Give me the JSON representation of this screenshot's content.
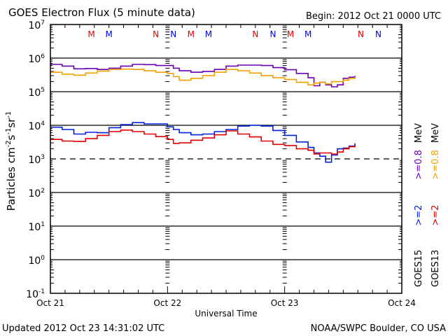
{
  "chart_data": {
    "type": "line",
    "title": "GOES Electron Flux (5 minute data)",
    "begin_label": "Begin: 2012 Oct 21 0000 UTC",
    "xlabel": "Universal Time",
    "ylabel": "Particles cm",
    "ylabel_parts": [
      {
        "text": "Particles cm",
        "sup": false
      },
      {
        "text": "-2",
        "sup": true
      },
      {
        "text": "s",
        "sup": false
      },
      {
        "text": "-1",
        "sup": true
      },
      {
        "text": "sr",
        "sup": false
      },
      {
        "text": "-1",
        "sup": true
      }
    ],
    "x_unit": "days since 2012 Oct 21 00:00 UTC",
    "xlim": [
      0,
      3
    ],
    "x_ticks": [
      {
        "value": 0,
        "label": "Oct 21"
      },
      {
        "value": 1,
        "label": "Oct 22"
      },
      {
        "value": 2,
        "label": "Oct 23"
      },
      {
        "value": 3,
        "label": "Oct 24"
      }
    ],
    "y_scale": "log",
    "ylim_exp": [
      -1,
      7
    ],
    "y_ticks": [
      {
        "exp": 7,
        "base": "10",
        "sup": "7"
      },
      {
        "exp": 6,
        "base": "10",
        "sup": "6"
      },
      {
        "exp": 5,
        "base": "10",
        "sup": "5"
      },
      {
        "exp": 4,
        "base": "10",
        "sup": "4"
      },
      {
        "exp": 3,
        "base": "10",
        "sup": "3"
      },
      {
        "exp": 2,
        "base": "10",
        "sup": "2"
      },
      {
        "exp": 1,
        "base": "10",
        "sup": "1"
      },
      {
        "exp": 0,
        "base": "10",
        "sup": "0"
      },
      {
        "exp": -1,
        "base": "10",
        "sup": "-1"
      }
    ],
    "gridlines_exp": [
      6,
      5,
      4,
      2,
      1,
      0
    ],
    "threshold_exp": 3,
    "markers": [
      {
        "day": 0.35,
        "label": "M",
        "color": "#e00000"
      },
      {
        "day": 0.5,
        "label": "M",
        "color": "#0000e0"
      },
      {
        "day": 0.9,
        "label": "N",
        "color": "#e00000"
      },
      {
        "day": 1.05,
        "label": "N",
        "color": "#0000e0"
      },
      {
        "day": 1.2,
        "label": "M",
        "color": "#e00000"
      },
      {
        "day": 1.35,
        "label": "M",
        "color": "#0000e0"
      },
      {
        "day": 1.75,
        "label": "N",
        "color": "#e00000"
      },
      {
        "day": 1.9,
        "label": "N",
        "color": "#0000e0"
      },
      {
        "day": 2.05,
        "label": "M",
        "color": "#e00000"
      },
      {
        "day": 2.2,
        "label": "M",
        "color": "#0000e0"
      },
      {
        "day": 2.65,
        "label": "N",
        "color": "#e00000"
      },
      {
        "day": 2.8,
        "label": "N",
        "color": "#0000e0"
      }
    ],
    "legend": {
      "placement": "right",
      "columns": [
        {
          "sat": "GOES15",
          "entries": [
            {
              "label": ">=2",
              "color": "#0020e0"
            },
            {
              "label": ">=0.8",
              "color": "#6a00b0"
            }
          ],
          "unit": "MeV"
        },
        {
          "sat": "GOES13",
          "entries": [
            {
              "label": ">=2",
              "color": "#e00000"
            },
            {
              "label": ">=0.8",
              "color": "#f0a000"
            }
          ],
          "unit": "MeV"
        }
      ]
    },
    "series": [
      {
        "name": "GOES15 >=0.8 MeV",
        "color": "#6a00b0",
        "x": [
          0,
          0.1,
          0.2,
          0.3,
          0.4,
          0.5,
          0.6,
          0.7,
          0.8,
          0.9,
          1.0,
          1.05,
          1.1,
          1.2,
          1.3,
          1.4,
          1.5,
          1.6,
          1.7,
          1.8,
          1.9,
          2.0,
          2.1,
          2.2,
          2.25,
          2.3,
          2.35,
          2.4,
          2.45,
          2.5,
          2.55,
          2.6
        ],
        "y": [
          650000.0,
          580000.0,
          480000.0,
          490000.0,
          460000.0,
          500000.0,
          580000.0,
          650000.0,
          640000.0,
          600000.0,
          600000.0,
          500000.0,
          420000.0,
          380000.0,
          400000.0,
          460000.0,
          580000.0,
          620000.0,
          620000.0,
          600000.0,
          520000.0,
          450000.0,
          350000.0,
          260000.0,
          150000.0,
          190000.0,
          160000.0,
          140000.0,
          160000.0,
          250000.0,
          270000.0,
          300000.0
        ]
      },
      {
        "name": "GOES13 >=0.8 MeV",
        "color": "#f0a000",
        "x": [
          0,
          0.1,
          0.2,
          0.3,
          0.4,
          0.5,
          0.6,
          0.7,
          0.8,
          0.9,
          1.0,
          1.05,
          1.1,
          1.2,
          1.3,
          1.4,
          1.5,
          1.6,
          1.7,
          1.8,
          1.9,
          2.0,
          2.1,
          2.2,
          2.25,
          2.3,
          2.35,
          2.4,
          2.45,
          2.5,
          2.55,
          2.6
        ],
        "y": [
          380000.0,
          330000.0,
          310000.0,
          360000.0,
          410000.0,
          460000.0,
          470000.0,
          460000.0,
          420000.0,
          380000.0,
          350000.0,
          280000.0,
          220000.0,
          250000.0,
          300000.0,
          380000.0,
          460000.0,
          420000.0,
          360000.0,
          300000.0,
          260000.0,
          230000.0,
          190000.0,
          160000.0,
          180000.0,
          190000.0,
          170000.0,
          200000.0,
          200000.0,
          220000.0,
          250000.0,
          280000.0
        ]
      },
      {
        "name": "GOES15 >=2 MeV",
        "color": "#0020e0",
        "x": [
          0,
          0.1,
          0.2,
          0.3,
          0.4,
          0.5,
          0.6,
          0.7,
          0.8,
          0.9,
          1.0,
          1.05,
          1.1,
          1.2,
          1.3,
          1.4,
          1.5,
          1.6,
          1.7,
          1.8,
          1.9,
          2.0,
          2.1,
          2.2,
          2.25,
          2.3,
          2.35,
          2.4,
          2.45,
          2.5,
          2.55,
          2.6
        ],
        "y": [
          8800.0,
          7500.0,
          5500.0,
          6200.0,
          6000.0,
          8500.0,
          10500.0,
          12000.0,
          11000.0,
          11000.0,
          9000.0,
          7500.0,
          6000.0,
          5200.0,
          5500.0,
          6500.0,
          7500.0,
          9500.0,
          10000.0,
          9500.0,
          7000.0,
          5000.0,
          3200.0,
          2200.0,
          1500.0,
          1200.0,
          800.0,
          1300.0,
          2000.0,
          2100.0,
          2400.0,
          2900.0
        ]
      },
      {
        "name": "GOES13 >=2 MeV",
        "color": "#e00000",
        "x": [
          0,
          0.1,
          0.2,
          0.3,
          0.4,
          0.5,
          0.6,
          0.7,
          0.8,
          0.9,
          1.0,
          1.05,
          1.1,
          1.2,
          1.3,
          1.4,
          1.5,
          1.6,
          1.7,
          1.8,
          1.9,
          2.0,
          2.1,
          2.2,
          2.25,
          2.3,
          2.35,
          2.4,
          2.45,
          2.5,
          2.55,
          2.6
        ],
        "y": [
          3800.0,
          3400.0,
          3300.0,
          4000.0,
          5000.0,
          6500.0,
          7200.0,
          6500.0,
          5500.0,
          4600.0,
          3800.0,
          2900.0,
          3000.0,
          3600.0,
          4200.0,
          5200.0,
          6800.0,
          5500.0,
          4500.0,
          3400.0,
          2700.0,
          2500.0,
          2000.0,
          1800.0,
          1400.0,
          1500.0,
          1500.0,
          1400.0,
          1600.0,
          2000.0,
          2300.0,
          2600.0
        ]
      }
    ]
  },
  "footer": {
    "updated": "Updated 2012 Oct 23 14:31:02 UTC",
    "credit": "NOAA/SWPC Boulder, CO USA"
  }
}
